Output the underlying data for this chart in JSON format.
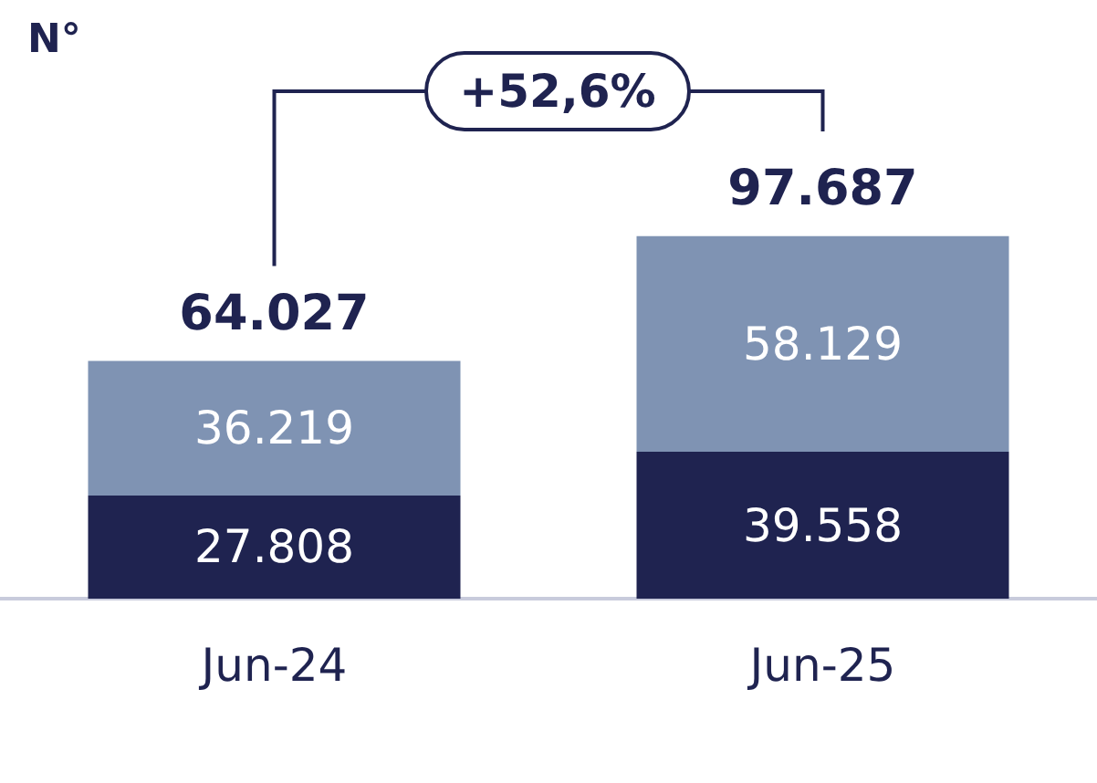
{
  "chart_data": {
    "type": "bar",
    "title": "N°",
    "stacked": true,
    "categories": [
      "Jun-24",
      "Jun-25"
    ],
    "series": [
      {
        "color": "#1f2350",
        "values": [
          27808,
          39558
        ],
        "value_labels": [
          "27.808",
          "39.558"
        ]
      },
      {
        "color": "#7f93b3",
        "values": [
          36219,
          58129
        ],
        "value_labels": [
          "36.219",
          "58.129"
        ]
      }
    ],
    "totals": [
      "64.027",
      "97.687"
    ],
    "annotations": [
      "+52,6%"
    ]
  }
}
